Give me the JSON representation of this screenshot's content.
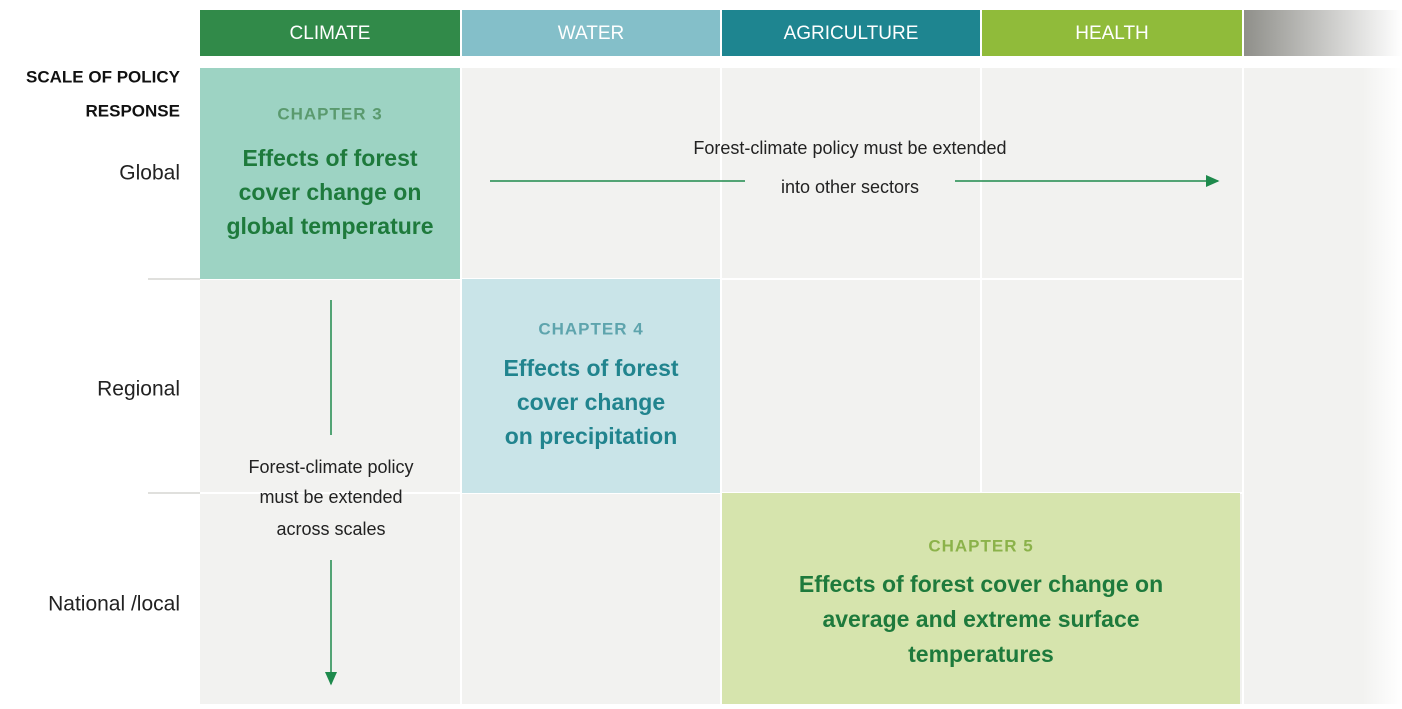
{
  "header": {
    "columns": [
      "CLIMATE",
      "WATER",
      "AGRICULTURE",
      "HEALTH"
    ]
  },
  "row_header": [
    "SCALE OF POLICY",
    "RESPONSE"
  ],
  "rows": [
    "Global",
    "Regional",
    "National /local"
  ],
  "chapters": [
    {
      "label": "CHAPTER 3",
      "title": [
        "Effects of forest",
        "cover change on",
        "global temperature"
      ]
    },
    {
      "label": "CHAPTER 4",
      "title": [
        "Effects of forest",
        "cover change",
        "on precipitation"
      ]
    },
    {
      "label": "CHAPTER 5",
      "title": [
        "Effects of forest cover change on",
        "average and extreme surface",
        "temperatures"
      ]
    }
  ],
  "arrows": [
    {
      "text": [
        "Forest-climate policy must be extended",
        "into other sectors"
      ]
    },
    {
      "text": [
        "Forest-climate policy",
        "must be extended",
        "across scales"
      ]
    }
  ]
}
